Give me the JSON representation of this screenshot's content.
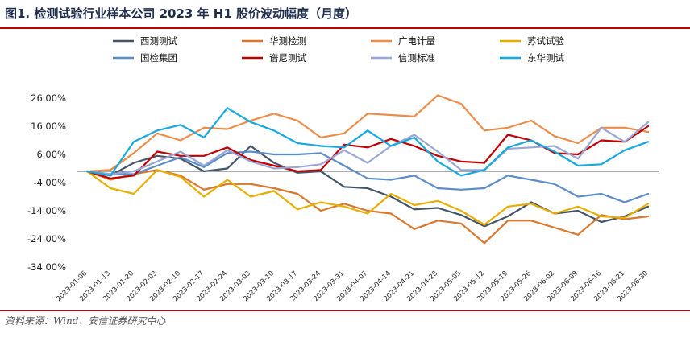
{
  "title": "图1. 检测试验行业样本公司 2023 年 H1 股价波动幅度（月度）",
  "source": "资料来源：Wind、安信证券研究中心",
  "chart_data": {
    "type": "line",
    "title": "",
    "xlabel": "",
    "ylabel": "",
    "ylim": [
      -34,
      26
    ],
    "ytick_values": [
      26,
      16,
      6,
      -4,
      -14,
      -24,
      -34
    ],
    "ytick_labels": [
      "26.00%",
      "16.00%",
      "6.00%",
      "-4.00%",
      "-14.00%",
      "-24.00%",
      "-34.00%"
    ],
    "grid": false,
    "legend_position": "top",
    "x": [
      "2023-01-06",
      "2023-01-13",
      "2023-01-20",
      "2023-02-03",
      "2023-02-10",
      "2023-02-17",
      "2023-02-24",
      "2023-03-03",
      "2023-03-10",
      "2023-03-17",
      "2023-03-24",
      "2023-03-31",
      "2023-04-07",
      "2023-04-14",
      "2023-04-21",
      "2023-04-28",
      "2023-05-05",
      "2023-05-12",
      "2023-05-19",
      "2023-05-26",
      "2023-06-02",
      "2023-06-09",
      "2023-06-16",
      "2023-06-21",
      "2023-06-30"
    ],
    "series": [
      {
        "name": "西测测试",
        "color": "#44546a",
        "values": [
          0,
          -1.5,
          3,
          5.5,
          4.5,
          0,
          1,
          9,
          3,
          -0.5,
          0,
          -5.5,
          -6,
          -9,
          -13.5,
          -13,
          -15.5,
          -19.5,
          -16,
          -11,
          -15,
          -14,
          -18,
          -16,
          -12.5
        ]
      },
      {
        "name": "华测检测",
        "color": "#d9772c",
        "values": [
          0,
          -3,
          -1,
          0.5,
          -1.5,
          -6.5,
          -4.5,
          -4.5,
          -6,
          -8,
          -14,
          -11.5,
          -14,
          -15,
          -20.5,
          -17.5,
          -18.5,
          -25.5,
          -17.5,
          -17.5,
          -20,
          -22.5,
          -15.5,
          -17,
          -16
        ]
      },
      {
        "name": "广电计量",
        "color": "#ed8c48",
        "values": [
          0,
          0.5,
          6.5,
          13.5,
          11,
          15.5,
          15,
          18,
          20.5,
          18,
          12,
          13.5,
          20.5,
          20,
          19.5,
          27,
          24,
          14.5,
          15.5,
          18,
          12.5,
          10,
          15.5,
          15.5,
          14
        ]
      },
      {
        "name": "苏试试验",
        "color": "#e7ae00",
        "values": [
          0,
          -6,
          -8,
          0.5,
          -2,
          -9,
          -3,
          -9,
          -7,
          -13.5,
          -11,
          -12.5,
          -15,
          -8,
          -12,
          -10.5,
          -14,
          -19,
          -12.5,
          -11.5,
          -15,
          -12.5,
          -16,
          -16.5,
          -11.5
        ]
      },
      {
        "name": "国检集团",
        "color": "#5b8cc5",
        "values": [
          0,
          -1,
          -1,
          2,
          5,
          1.5,
          6.5,
          7,
          6,
          6,
          6.5,
          2,
          -2.5,
          -3,
          -1.5,
          -6,
          -6.5,
          -6,
          -1.5,
          -3,
          -4.5,
          -9,
          -8,
          -11,
          -8
        ]
      },
      {
        "name": "谱尼测试",
        "color": "#c00000",
        "values": [
          0,
          -2.5,
          -1.5,
          7,
          5.5,
          5.5,
          8.5,
          4,
          2,
          0,
          0.5,
          9.5,
          8.5,
          11.5,
          9,
          5.5,
          3.5,
          3,
          13,
          11,
          6.5,
          6,
          11,
          10.5,
          16
        ]
      },
      {
        "name": "信测标准",
        "color": "#9aa6d3",
        "values": [
          0,
          -1,
          0,
          3.5,
          7,
          2,
          7.5,
          3.5,
          1,
          1.5,
          2.5,
          7.5,
          3,
          9,
          13,
          7,
          0.5,
          0.5,
          8,
          8.5,
          9,
          4.5,
          15.5,
          10.5,
          17.5
        ]
      },
      {
        "name": "东华测试",
        "color": "#16a8df",
        "values": [
          0,
          -1.5,
          10.5,
          14.5,
          16.5,
          12,
          22.5,
          17.5,
          14.5,
          10,
          9,
          8.5,
          14.5,
          9,
          12,
          3.5,
          -1.5,
          0.5,
          8.5,
          11,
          7,
          2,
          2.5,
          7.5,
          10.5
        ]
      }
    ]
  }
}
